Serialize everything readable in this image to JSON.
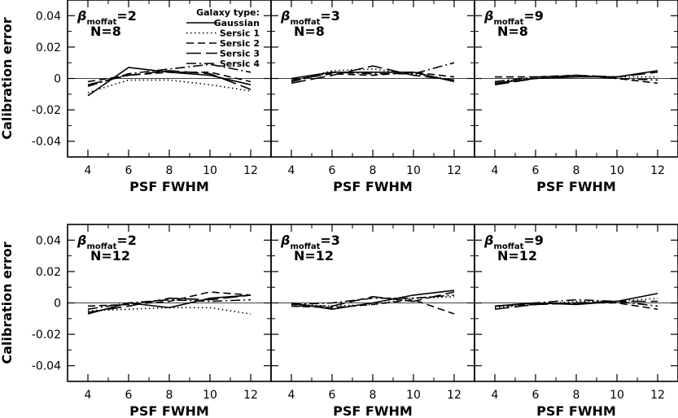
{
  "legend": {
    "title": "Galaxy type:",
    "entries": [
      {
        "name": "Gaussian",
        "dash": "solid"
      },
      {
        "name": "Sersic 1",
        "dash": "dotted"
      },
      {
        "name": "Sersic 2",
        "dash": "dashed"
      },
      {
        "name": "Sersic 3",
        "dash": "longdash"
      },
      {
        "name": "Sersic 4",
        "dash": "dashdot"
      }
    ]
  },
  "chart_data": {
    "type": "line",
    "layout": "2x3 grid of panels",
    "xlabel": "PSF FWHM",
    "ylabel": "Calibration error",
    "xlim": [
      3,
      13
    ],
    "ylim": [
      -0.05,
      0.05
    ],
    "xticks": [
      "4",
      "6",
      "8",
      "10",
      "12"
    ],
    "yticks": [
      "-0.04",
      "-0.02",
      "0",
      "0.02",
      "0.04"
    ],
    "x": [
      4,
      6,
      8,
      10,
      12
    ],
    "zero_line": true,
    "panels": [
      {
        "beta": "2",
        "N": "N=8",
        "series": [
          {
            "name": "Gaussian",
            "values": [
              -0.011,
              0.007,
              0.004,
              0.002,
              -0.004
            ]
          },
          {
            "name": "Sersic 1",
            "values": [
              -0.009,
              -0.001,
              -0.001,
              -0.004,
              -0.008
            ]
          },
          {
            "name": "Sersic 2",
            "values": [
              -0.002,
              0.002,
              0.004,
              0.004,
              -0.002
            ]
          },
          {
            "name": "Sersic 3",
            "values": [
              -0.004,
              0.002,
              0.005,
              0.003,
              -0.007
            ]
          },
          {
            "name": "Sersic 4",
            "values": [
              -0.005,
              0.003,
              0.006,
              0.009,
              0.004
            ]
          }
        ]
      },
      {
        "beta": "3",
        "N": "N=8",
        "series": [
          {
            "name": "Gaussian",
            "values": [
              0.0,
              0.004,
              0.004,
              0.004,
              -0.002
            ]
          },
          {
            "name": "Sersic 1",
            "values": [
              -0.002,
              0.005,
              0.006,
              0.003,
              -0.001
            ]
          },
          {
            "name": "Sersic 2",
            "values": [
              -0.001,
              0.003,
              0.002,
              0.004,
              0.001
            ]
          },
          {
            "name": "Sersic 3",
            "values": [
              -0.003,
              0.002,
              0.008,
              0.002,
              -0.001
            ]
          },
          {
            "name": "Sersic 4",
            "values": [
              -0.002,
              0.004,
              0.003,
              0.003,
              0.01
            ]
          }
        ]
      },
      {
        "beta": "9",
        "N": "N=8",
        "series": [
          {
            "name": "Gaussian",
            "values": [
              -0.003,
              0.0,
              0.001,
              0.001,
              0.005
            ]
          },
          {
            "name": "Sersic 1",
            "values": [
              -0.002,
              0.0,
              0.002,
              0.001,
              0.001
            ]
          },
          {
            "name": "Sersic 2",
            "values": [
              0.001,
              0.001,
              0.002,
              0.0,
              -0.003
            ]
          },
          {
            "name": "Sersic 3",
            "values": [
              -0.004,
              0.0,
              0.002,
              0.001,
              0.004
            ]
          },
          {
            "name": "Sersic 4",
            "values": [
              -0.002,
              0.001,
              0.002,
              0.0,
              -0.001
            ]
          }
        ]
      },
      {
        "beta": "2",
        "N": "N=12",
        "series": [
          {
            "name": "Gaussian",
            "values": [
              -0.007,
              0.0,
              -0.003,
              0.003,
              0.005
            ]
          },
          {
            "name": "Sersic 1",
            "values": [
              -0.005,
              -0.004,
              -0.003,
              -0.003,
              -0.007
            ]
          },
          {
            "name": "Sersic 2",
            "values": [
              -0.002,
              -0.001,
              0.001,
              0.007,
              0.005
            ]
          },
          {
            "name": "Sersic 3",
            "values": [
              -0.006,
              -0.002,
              0.003,
              0.002,
              0.005
            ]
          },
          {
            "name": "Sersic 4",
            "values": [
              -0.004,
              0.0,
              0.002,
              0.001,
              0.002
            ]
          }
        ]
      },
      {
        "beta": "3",
        "N": "N=12",
        "series": [
          {
            "name": "Gaussian",
            "values": [
              0.0,
              -0.004,
              0.0,
              0.005,
              0.008
            ]
          },
          {
            "name": "Sersic 1",
            "values": [
              -0.001,
              -0.002,
              -0.001,
              0.003,
              0.004
            ]
          },
          {
            "name": "Sersic 2",
            "values": [
              -0.002,
              -0.003,
              -0.001,
              0.002,
              -0.007
            ]
          },
          {
            "name": "Sersic 3",
            "values": [
              -0.002,
              -0.002,
              0.004,
              0.001,
              0.007
            ]
          },
          {
            "name": "Sersic 4",
            "values": [
              -0.001,
              0.0,
              0.003,
              0.003,
              0.005
            ]
          }
        ]
      },
      {
        "beta": "9",
        "N": "N=12",
        "series": [
          {
            "name": "Gaussian",
            "values": [
              -0.002,
              0.0,
              -0.001,
              0.001,
              0.006
            ]
          },
          {
            "name": "Sersic 1",
            "values": [
              -0.003,
              -0.001,
              0.001,
              0.001,
              0.003
            ]
          },
          {
            "name": "Sersic 2",
            "values": [
              -0.002,
              -0.001,
              0.0,
              0.0,
              -0.004
            ]
          },
          {
            "name": "Sersic 3",
            "values": [
              -0.004,
              -0.001,
              0.0,
              0.001,
              0.001
            ]
          },
          {
            "name": "Sersic 4",
            "values": [
              -0.002,
              0.0,
              0.002,
              0.001,
              -0.002
            ]
          }
        ]
      }
    ]
  }
}
